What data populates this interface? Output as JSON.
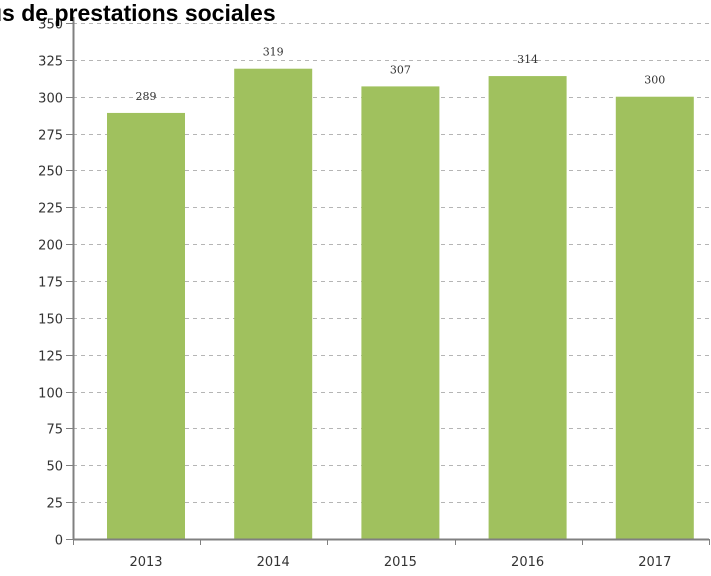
{
  "chart_data": {
    "type": "bar",
    "title": "us de prestations sociales",
    "categories": [
      "2013",
      "2014",
      "2015",
      "2016",
      "2017"
    ],
    "values": [
      289,
      319,
      307,
      314,
      300
    ],
    "data_labels": [
      "289",
      "319",
      "307",
      "314",
      "300"
    ],
    "yticks": [
      0,
      25,
      50,
      75,
      100,
      125,
      150,
      175,
      200,
      225,
      250,
      275,
      300,
      325,
      350
    ],
    "ylim": [
      0,
      350
    ],
    "xlabel": "",
    "ylabel": "",
    "grid": true,
    "legend": "none",
    "colors": {
      "bar": "#a0c15e",
      "grid": "#b5b5b5",
      "axis": "#808080",
      "text": "#333333"
    }
  }
}
